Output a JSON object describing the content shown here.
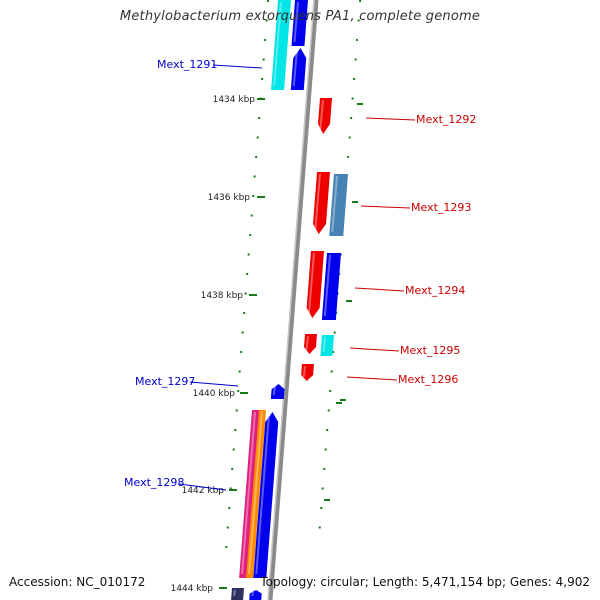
{
  "title": "Methylobacterium extorquens PA1, complete genome",
  "accession": "Accession: NC_010172",
  "summary": "Topology: circular; Length: 5,471,154 bp; Genes: 4,902",
  "colors": {
    "backbone": "#8a8a8a",
    "forward_label": "#0000cc",
    "reverse_label": "#cc0000",
    "tick": "#1a7a1a"
  },
  "ticks": [
    {
      "label": "1434 kbp"
    },
    {
      "label": "1436 kbp"
    },
    {
      "label": "1438 kbp"
    },
    {
      "label": "1440 kbp"
    },
    {
      "label": "1442 kbp"
    },
    {
      "label": "1444 kbp"
    }
  ],
  "gene_labels": [
    {
      "name": "Mext_1291",
      "strand": "forward"
    },
    {
      "name": "Mext_1292",
      "strand": "reverse"
    },
    {
      "name": "Mext_1293",
      "strand": "reverse"
    },
    {
      "name": "Mext_1294",
      "strand": "reverse"
    },
    {
      "name": "Mext_1295",
      "strand": "reverse"
    },
    {
      "name": "Mext_1296",
      "strand": "reverse"
    },
    {
      "name": "Mext_1297",
      "strand": "forward"
    },
    {
      "name": "Mext_1298",
      "strand": "forward"
    }
  ]
}
